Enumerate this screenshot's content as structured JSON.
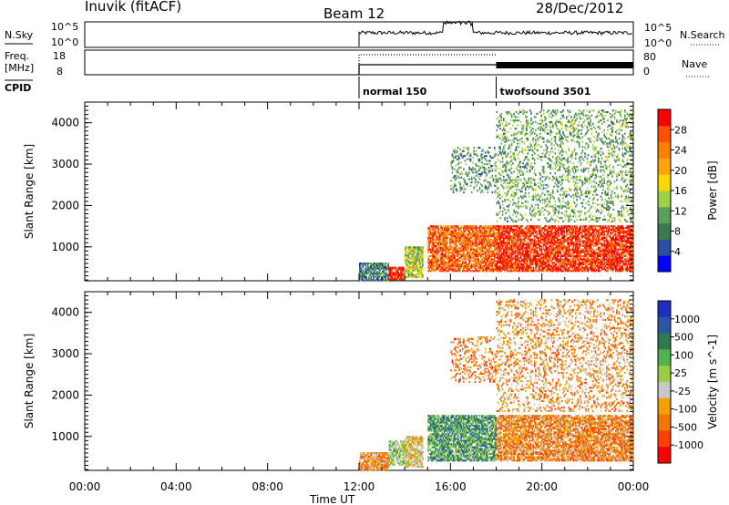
{
  "header": {
    "station": "Inuvik (fitACF)",
    "beam": "Beam 12",
    "date": "28/Dec/2012"
  },
  "status": {
    "nsky_label": "N.Sky",
    "nsky_ticks": [
      "10^5",
      "10^0"
    ],
    "nsky_right_ticks": [
      "10^5",
      "10^0"
    ],
    "nsearch_label": "N.Search",
    "freq_label_1": "Freq.",
    "freq_label_2": "[MHz]",
    "freq_ticks": [
      "18",
      "8"
    ],
    "nave_ticks": [
      "80",
      "0"
    ],
    "nave_label": "Nave",
    "cpid_label": "CPID",
    "modes": [
      {
        "name": "normal 150",
        "start_hour": 12
      },
      {
        "name": "twofsound 3501",
        "start_hour": 18
      }
    ]
  },
  "colors": {
    "power": [
      "#0000ff",
      "#2a4fa0",
      "#3d7a50",
      "#5aa05a",
      "#9fd04a",
      "#ffd700",
      "#ffa500",
      "#ff7f00",
      "#ff5000",
      "#ff0000"
    ],
    "velocity": [
      "#1c2fbf",
      "#2c55a8",
      "#2e7a50",
      "#4fb34f",
      "#9ccc45",
      "#c8c8c8",
      "#f0a000",
      "#f07800",
      "#ff4000",
      "#ff0000"
    ]
  },
  "chart_data": [
    {
      "type": "heatmap",
      "panel": "power",
      "xlabel": "",
      "ylabel": "Slant Range [km]",
      "xlim": [
        0,
        24
      ],
      "ylim": [
        180,
        4500
      ],
      "yticks": [
        1000,
        2000,
        3000,
        4000
      ],
      "colorbar_label": "Power [dB]",
      "colorbar_ticks": [
        "4",
        "8",
        "12",
        "16",
        "20",
        "24",
        "28"
      ],
      "colorbar_range": [
        0,
        32
      ],
      "echo_regions": [
        {
          "t0": 12.0,
          "t1": 13.3,
          "r0": 180,
          "r1": 600,
          "level": 0.25
        },
        {
          "t0": 13.3,
          "t1": 14.0,
          "r0": 200,
          "r1": 500,
          "level": 0.95
        },
        {
          "t0": 14.0,
          "t1": 14.8,
          "r0": 250,
          "r1": 1000,
          "level": 0.45
        },
        {
          "t0": 15.0,
          "t1": 18.0,
          "r0": 400,
          "r1": 1500,
          "level": 0.8
        },
        {
          "t0": 18.0,
          "t1": 24.0,
          "r0": 400,
          "r1": 1500,
          "level": 0.9
        },
        {
          "t0": 18.0,
          "t1": 24.0,
          "r0": 1600,
          "r1": 4300,
          "level": 0.35
        },
        {
          "t0": 16.0,
          "t1": 18.0,
          "r0": 2300,
          "r1": 3400,
          "level": 0.3
        }
      ]
    },
    {
      "type": "heatmap",
      "panel": "velocity",
      "xlabel": "Time UT",
      "ylabel": "Slant Range [km]",
      "xlim": [
        0,
        24
      ],
      "ylim": [
        180,
        4500
      ],
      "xticks": [
        "00:00",
        "04:00",
        "08:00",
        "12:00",
        "16:00",
        "20:00",
        "00:00"
      ],
      "yticks": [
        1000,
        2000,
        3000,
        4000
      ],
      "colorbar_label": "Velocity [m s^-1]",
      "colorbar_ticks": [
        "1000",
        "500",
        "100",
        "25",
        "-25",
        "-100",
        "-500",
        "-1000"
      ],
      "echo_regions": [
        {
          "t0": 12.0,
          "t1": 13.3,
          "r0": 180,
          "r1": 600,
          "level": 0.7
        },
        {
          "t0": 13.3,
          "t1": 14.0,
          "r0": 300,
          "r1": 900,
          "level": 0.45
        },
        {
          "t0": 14.0,
          "t1": 14.8,
          "r0": 250,
          "r1": 1000,
          "level": 0.6
        },
        {
          "t0": 15.0,
          "t1": 18.0,
          "r0": 400,
          "r1": 1500,
          "level": 0.3
        },
        {
          "t0": 18.0,
          "t1": 24.0,
          "r0": 400,
          "r1": 1500,
          "level": 0.72
        },
        {
          "t0": 18.0,
          "t1": 24.0,
          "r0": 1600,
          "r1": 4300,
          "level": 0.7
        },
        {
          "t0": 16.0,
          "t1": 18.0,
          "r0": 2300,
          "r1": 3400,
          "level": 0.75
        }
      ]
    }
  ]
}
